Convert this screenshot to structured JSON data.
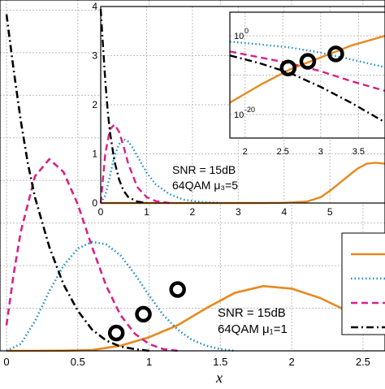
{
  "colors": {
    "orange": "#e8891f",
    "dotted": "#1e8cc8",
    "magenta": "#d6228a",
    "dashdot": "#000000",
    "grid": "#bdbdbd"
  },
  "chart_data": [
    {
      "id": "main",
      "type": "line",
      "title": "",
      "xlabel": "x",
      "ylabel": "",
      "xlim": [
        0,
        2.7
      ],
      "ylim": [
        0,
        4.1
      ],
      "xticks": [
        0,
        0.5,
        1,
        1.5,
        2,
        2.5
      ],
      "xtick_labels": [
        "0",
        "0.5",
        "1",
        "1.5",
        "2",
        "2.5"
      ],
      "grid": true,
      "legend": "right",
      "annotation": [
        "SNR = 15dB",
        "64QAM μ₁=1"
      ],
      "series": [
        {
          "style": "solid",
          "color": "orange",
          "x": [
            0,
            0.2,
            0.4,
            0.6,
            0.8,
            1.0,
            1.2,
            1.4,
            1.6,
            1.8,
            2.0,
            2.2,
            2.4,
            2.6,
            2.7
          ],
          "y": [
            0,
            0,
            0.002,
            0.01,
            0.06,
            0.16,
            0.3,
            0.5,
            0.68,
            0.76,
            0.73,
            0.62,
            0.46,
            0.32,
            0.25
          ]
        },
        {
          "style": "dotted",
          "color": "dotted",
          "x": [
            0,
            0.1,
            0.2,
            0.3,
            0.4,
            0.5,
            0.6,
            0.7,
            0.8,
            0.9,
            1.0,
            1.1,
            1.2,
            1.3,
            1.4,
            1.5,
            1.6
          ],
          "y": [
            0,
            0.08,
            0.35,
            0.7,
            1.0,
            1.2,
            1.28,
            1.25,
            1.12,
            0.9,
            0.65,
            0.42,
            0.25,
            0.13,
            0.06,
            0.02,
            0
          ]
        },
        {
          "style": "dashed",
          "color": "magenta",
          "x": [
            0,
            0.05,
            0.1,
            0.2,
            0.3,
            0.4,
            0.5,
            0.6,
            0.7,
            0.8,
            0.9,
            1.0,
            1.1,
            1.2
          ],
          "y": [
            0.3,
            0.9,
            1.4,
            2.05,
            2.25,
            2.1,
            1.72,
            1.22,
            0.76,
            0.42,
            0.2,
            0.08,
            0.02,
            0
          ]
        },
        {
          "style": "dashdot",
          "color": "dashdot",
          "x": [
            0,
            0.05,
            0.1,
            0.15,
            0.2,
            0.3,
            0.4,
            0.5,
            0.6,
            0.7,
            0.8,
            0.9,
            1.0
          ],
          "y": [
            3.95,
            3.3,
            2.7,
            2.2,
            1.8,
            1.22,
            0.78,
            0.47,
            0.25,
            0.12,
            0.05,
            0.02,
            0
          ]
        }
      ],
      "markers": [
        {
          "x": 0.77,
          "y": 0.21
        },
        {
          "x": 0.96,
          "y": 0.43
        },
        {
          "x": 1.2,
          "y": 0.72
        }
      ]
    },
    {
      "id": "inset",
      "type": "line",
      "xlim": [
        0,
        6.2
      ],
      "ylim": [
        0,
        4
      ],
      "xticks": [
        0,
        1,
        2,
        3,
        4,
        5
      ],
      "xtick_labels": [
        "0",
        "1",
        "2",
        "3",
        "4",
        "5"
      ],
      "yticks": [
        0,
        1,
        2,
        3,
        4
      ],
      "ytick_labels": [
        "0",
        "1",
        "2",
        "3",
        "4"
      ],
      "grid": true,
      "annotation": [
        "SNR = 15dB",
        "64QAM μ₃=5"
      ],
      "series": [
        {
          "style": "solid",
          "color": "orange",
          "x": [
            0,
            3.5,
            4.0,
            4.5,
            4.8,
            5.0,
            5.2,
            5.4,
            5.6,
            5.8,
            6.0,
            6.2
          ],
          "y": [
            0,
            0,
            0.005,
            0.03,
            0.12,
            0.25,
            0.4,
            0.55,
            0.7,
            0.8,
            0.82,
            0.8
          ]
        },
        {
          "style": "dotted",
          "color": "dotted",
          "x": [
            0,
            0.1,
            0.2,
            0.3,
            0.4,
            0.5,
            0.6,
            0.7,
            0.8,
            1.0,
            1.2,
            1.5,
            1.8,
            2.2,
            2.6
          ],
          "y": [
            0,
            0.15,
            0.55,
            0.95,
            1.2,
            1.3,
            1.25,
            1.12,
            0.95,
            0.62,
            0.38,
            0.18,
            0.07,
            0.02,
            0
          ]
        },
        {
          "style": "dashed",
          "color": "magenta",
          "x": [
            0,
            0.05,
            0.1,
            0.2,
            0.3,
            0.4,
            0.5,
            0.6,
            0.8,
            1.0,
            1.2,
            1.5
          ],
          "y": [
            0,
            0.5,
            1.0,
            1.5,
            1.6,
            1.45,
            1.15,
            0.8,
            0.32,
            0.12,
            0.04,
            0
          ]
        },
        {
          "style": "dashdot",
          "color": "dashdot",
          "x": [
            0,
            0.05,
            0.1,
            0.15,
            0.2,
            0.3,
            0.4,
            0.5,
            0.6,
            0.8,
            1.0
          ],
          "y": [
            3.95,
            3.2,
            2.5,
            1.9,
            1.45,
            0.85,
            0.48,
            0.25,
            0.12,
            0.03,
            0
          ]
        }
      ]
    },
    {
      "id": "inner-inset",
      "type": "line",
      "yscale": "log",
      "xlim": [
        1.8,
        3.85
      ],
      "xticks": [
        2,
        2.5,
        3,
        3.5
      ],
      "xtick_labels": [
        "2",
        "2.5",
        "3",
        "3.5"
      ],
      "ylim_exponent": [
        -26,
        6
      ],
      "yticks_exponent": [
        0,
        -20
      ],
      "ytick_labels": [
        "10",
        "10"
      ],
      "ytick_exponents": [
        "0",
        "-20"
      ],
      "grid": true,
      "series": [
        {
          "style": "solid",
          "color": "orange",
          "x": [
            1.8,
            2.2,
            2.6,
            3.0,
            3.4,
            3.85
          ],
          "y_exponent": [
            -17,
            -12.5,
            -8.5,
            -5.5,
            -2.5,
            0
          ]
        },
        {
          "style": "dotted",
          "color": "dotted",
          "x": [
            1.8,
            2.2,
            2.6,
            3.0,
            3.4,
            3.85
          ],
          "y_exponent": [
            -1.5,
            -2.2,
            -3,
            -4.3,
            -6,
            -8
          ]
        },
        {
          "style": "dashed",
          "color": "magenta",
          "x": [
            1.8,
            2.2,
            2.6,
            3.0,
            3.4,
            3.85
          ],
          "y_exponent": [
            -4,
            -5.5,
            -7,
            -9,
            -11.5,
            -14
          ]
        },
        {
          "style": "dashdot",
          "color": "dashdot",
          "x": [
            1.8,
            2.2,
            2.6,
            3.0,
            3.4,
            3.85
          ],
          "y_exponent": [
            -5,
            -7,
            -9.5,
            -13,
            -17,
            -22
          ]
        }
      ],
      "markers": [
        {
          "x": 2.57,
          "y_exponent": -8.2
        },
        {
          "x": 2.83,
          "y_exponent": -6.5
        },
        {
          "x": 3.2,
          "y_exponent": -4.6
        }
      ]
    }
  ]
}
